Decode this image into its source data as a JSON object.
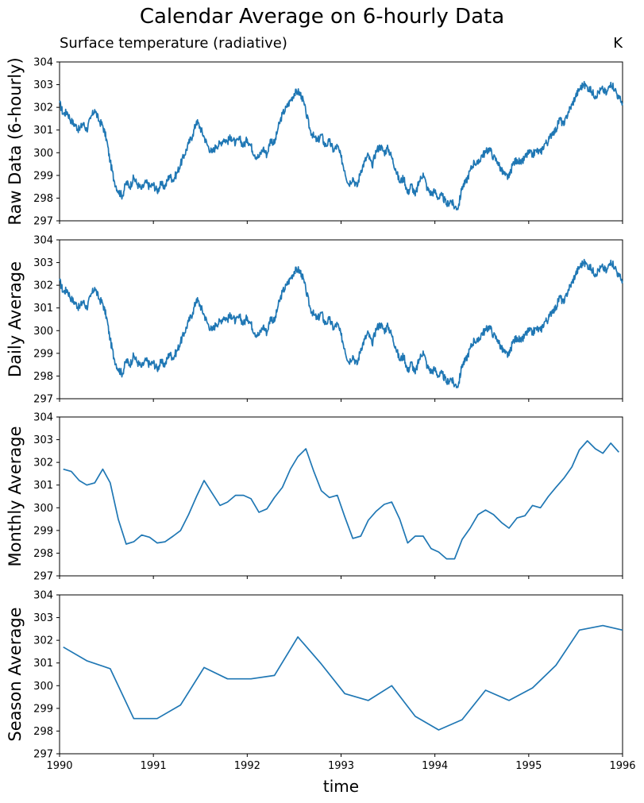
{
  "figure": {
    "title": "Calendar Average on 6-hourly Data",
    "subtitle": "Surface temperature (radiative)",
    "units": "K",
    "xlabel": "time"
  },
  "colors": {
    "line": "#1f77b4",
    "axis": "#000000"
  },
  "chart_data": [
    {
      "type": "line",
      "title": "",
      "ylabel": "Raw Data (6-hourly)",
      "xlim": [
        1990,
        1996
      ],
      "ylim": [
        297,
        304
      ],
      "yticks": [
        297,
        298,
        299,
        300,
        301,
        302,
        303,
        304
      ],
      "xticks": [
        1990,
        1991,
        1992,
        1993,
        1994,
        1995,
        1996
      ],
      "x": [
        1990.0,
        1990.04,
        1990.08,
        1990.125,
        1990.17,
        1990.21,
        1990.25,
        1990.29,
        1990.33,
        1990.375,
        1990.42,
        1990.46,
        1990.5,
        1990.54,
        1990.58,
        1990.625,
        1990.67,
        1990.71,
        1990.75,
        1990.79,
        1990.83,
        1990.875,
        1990.92,
        1990.96,
        1991.0,
        1991.04,
        1991.08,
        1991.125,
        1991.17,
        1991.21,
        1991.25,
        1991.29,
        1991.33,
        1991.375,
        1991.42,
        1991.46,
        1991.5,
        1991.54,
        1991.58,
        1991.625,
        1991.67,
        1991.71,
        1991.75,
        1991.79,
        1991.83,
        1991.875,
        1991.92,
        1991.96,
        1992.0,
        1992.04,
        1992.08,
        1992.125,
        1992.17,
        1992.21,
        1992.25,
        1992.29,
        1992.33,
        1992.375,
        1992.42,
        1992.46,
        1992.5,
        1992.54,
        1992.58,
        1992.625,
        1992.67,
        1992.71,
        1992.75,
        1992.79,
        1992.83,
        1992.875,
        1992.92,
        1992.96,
        1993.0,
        1993.04,
        1993.08,
        1993.125,
        1993.17,
        1993.21,
        1993.25,
        1993.29,
        1993.33,
        1993.375,
        1993.42,
        1993.46,
        1993.5,
        1993.54,
        1993.58,
        1993.625,
        1993.67,
        1993.71,
        1993.75,
        1993.79,
        1993.83,
        1993.875,
        1993.92,
        1993.96,
        1994.0,
        1994.04,
        1994.08,
        1994.125,
        1994.17,
        1994.21,
        1994.25,
        1994.29,
        1994.33,
        1994.375,
        1994.42,
        1994.46,
        1994.5,
        1994.54,
        1994.58,
        1994.625,
        1994.67,
        1994.71,
        1994.75,
        1994.79,
        1994.83,
        1994.875,
        1994.92,
        1994.96,
        1995.0,
        1995.04,
        1995.08,
        1995.125,
        1995.17,
        1995.21,
        1995.25,
        1995.29,
        1995.33,
        1995.375,
        1995.42,
        1995.46,
        1995.5,
        1995.54,
        1995.58,
        1995.625,
        1995.67,
        1995.71,
        1995.75,
        1995.79,
        1995.83,
        1995.875,
        1995.92,
        1995.96,
        1996.0
      ],
      "values": [
        302.2,
        301.7,
        301.8,
        301.4,
        301.2,
        301.0,
        301.3,
        301.0,
        301.5,
        301.9,
        301.4,
        301.2,
        300.6,
        299.6,
        298.8,
        298.3,
        298.1,
        298.7,
        298.5,
        298.9,
        298.6,
        298.4,
        298.7,
        298.5,
        298.6,
        298.3,
        298.6,
        298.5,
        299.0,
        298.8,
        299.1,
        299.5,
        299.9,
        300.4,
        300.8,
        301.4,
        301.1,
        300.7,
        300.3,
        300.0,
        300.3,
        300.4,
        300.6,
        300.5,
        300.7,
        300.4,
        300.6,
        300.3,
        300.6,
        300.3,
        299.9,
        299.8,
        300.2,
        299.9,
        300.6,
        300.4,
        301.1,
        301.7,
        302.0,
        302.3,
        302.6,
        302.7,
        302.5,
        301.8,
        301.0,
        300.7,
        300.5,
        300.8,
        300.3,
        300.5,
        300.1,
        300.3,
        299.8,
        299.2,
        298.6,
        298.9,
        298.5,
        299.2,
        299.6,
        299.9,
        299.4,
        300.1,
        300.3,
        300.0,
        300.2,
        299.8,
        299.3,
        298.7,
        298.9,
        298.2,
        298.6,
        298.1,
        298.7,
        299.1,
        298.4,
        298.2,
        298.3,
        298.0,
        298.1,
        297.7,
        297.9,
        297.6,
        297.6,
        298.5,
        298.7,
        299.2,
        299.6,
        299.5,
        299.9,
        300.0,
        300.2,
        299.8,
        299.6,
        299.2,
        299.0,
        298.9,
        299.5,
        299.7,
        299.5,
        299.8,
        300.0,
        299.9,
        300.1,
        300.0,
        300.4,
        300.5,
        300.9,
        301.0,
        301.5,
        301.2,
        301.8,
        302.1,
        302.5,
        302.8,
        303.0,
        302.9,
        302.7,
        302.5,
        302.7,
        302.8,
        302.6,
        303.1,
        302.8,
        302.4,
        302.2
      ],
      "style": "wiggly"
    },
    {
      "type": "line",
      "title": "",
      "ylabel": "Daily Average",
      "xlim": [
        1990,
        1996
      ],
      "ylim": [
        297,
        304
      ],
      "yticks": [
        297,
        298,
        299,
        300,
        301,
        302,
        303,
        304
      ],
      "xticks": [
        1990,
        1991,
        1992,
        1993,
        1994,
        1995,
        1996
      ],
      "x": [
        1990.0,
        1990.04,
        1990.08,
        1990.125,
        1990.17,
        1990.21,
        1990.25,
        1990.29,
        1990.33,
        1990.375,
        1990.42,
        1990.46,
        1990.5,
        1990.54,
        1990.58,
        1990.625,
        1990.67,
        1990.71,
        1990.75,
        1990.79,
        1990.83,
        1990.875,
        1990.92,
        1990.96,
        1991.0,
        1991.04,
        1991.08,
        1991.125,
        1991.17,
        1991.21,
        1991.25,
        1991.29,
        1991.33,
        1991.375,
        1991.42,
        1991.46,
        1991.5,
        1991.54,
        1991.58,
        1991.625,
        1991.67,
        1991.71,
        1991.75,
        1991.79,
        1991.83,
        1991.875,
        1991.92,
        1991.96,
        1992.0,
        1992.04,
        1992.08,
        1992.125,
        1992.17,
        1992.21,
        1992.25,
        1992.29,
        1992.33,
        1992.375,
        1992.42,
        1992.46,
        1992.5,
        1992.54,
        1992.58,
        1992.625,
        1992.67,
        1992.71,
        1992.75,
        1992.79,
        1992.83,
        1992.875,
        1992.92,
        1992.96,
        1993.0,
        1993.04,
        1993.08,
        1993.125,
        1993.17,
        1993.21,
        1993.25,
        1993.29,
        1993.33,
        1993.375,
        1993.42,
        1993.46,
        1993.5,
        1993.54,
        1993.58,
        1993.625,
        1993.67,
        1993.71,
        1993.75,
        1993.79,
        1993.83,
        1993.875,
        1993.92,
        1993.96,
        1994.0,
        1994.04,
        1994.08,
        1994.125,
        1994.17,
        1994.21,
        1994.25,
        1994.29,
        1994.33,
        1994.375,
        1994.42,
        1994.46,
        1994.5,
        1994.54,
        1994.58,
        1994.625,
        1994.67,
        1994.71,
        1994.75,
        1994.79,
        1994.83,
        1994.875,
        1994.92,
        1994.96,
        1995.0,
        1995.04,
        1995.08,
        1995.125,
        1995.17,
        1995.21,
        1995.25,
        1995.29,
        1995.33,
        1995.375,
        1995.42,
        1995.46,
        1995.5,
        1995.54,
        1995.58,
        1995.625,
        1995.67,
        1995.71,
        1995.75,
        1995.79,
        1995.83,
        1995.875,
        1995.92,
        1995.96,
        1996.0
      ],
      "values": [
        302.2,
        301.7,
        301.8,
        301.4,
        301.2,
        301.0,
        301.3,
        301.0,
        301.5,
        301.9,
        301.4,
        301.2,
        300.6,
        299.6,
        298.8,
        298.3,
        298.1,
        298.7,
        298.5,
        298.9,
        298.6,
        298.4,
        298.7,
        298.5,
        298.6,
        298.3,
        298.6,
        298.5,
        299.0,
        298.8,
        299.1,
        299.5,
        299.9,
        300.4,
        300.8,
        301.4,
        301.1,
        300.7,
        300.3,
        300.0,
        300.3,
        300.4,
        300.6,
        300.5,
        300.7,
        300.4,
        300.6,
        300.3,
        300.6,
        300.3,
        299.9,
        299.8,
        300.2,
        299.9,
        300.6,
        300.4,
        301.1,
        301.7,
        302.0,
        302.3,
        302.6,
        302.7,
        302.5,
        301.8,
        301.0,
        300.7,
        300.5,
        300.8,
        300.3,
        300.5,
        300.1,
        300.3,
        299.8,
        299.2,
        298.6,
        298.9,
        298.5,
        299.2,
        299.6,
        299.9,
        299.4,
        300.1,
        300.3,
        300.0,
        300.2,
        299.8,
        299.3,
        298.7,
        298.9,
        298.2,
        298.6,
        298.1,
        298.7,
        299.1,
        298.4,
        298.2,
        298.3,
        298.0,
        298.1,
        297.7,
        297.9,
        297.6,
        297.6,
        298.5,
        298.7,
        299.2,
        299.6,
        299.5,
        299.9,
        300.0,
        300.2,
        299.8,
        299.6,
        299.2,
        299.0,
        298.9,
        299.5,
        299.7,
        299.5,
        299.8,
        300.0,
        299.9,
        300.1,
        300.0,
        300.4,
        300.5,
        300.9,
        301.0,
        301.5,
        301.2,
        301.8,
        302.1,
        302.5,
        302.8,
        303.0,
        302.9,
        302.7,
        302.5,
        302.7,
        302.8,
        302.6,
        303.1,
        302.8,
        302.4,
        302.2
      ],
      "style": "wiggly"
    },
    {
      "type": "line",
      "title": "",
      "ylabel": "Monthly Average",
      "xlim": [
        1990,
        1996
      ],
      "ylim": [
        297,
        304
      ],
      "yticks": [
        297,
        298,
        299,
        300,
        301,
        302,
        303,
        304
      ],
      "xticks": [
        1990,
        1991,
        1992,
        1993,
        1994,
        1995,
        1996
      ],
      "x": [
        1990.04,
        1990.125,
        1990.21,
        1990.29,
        1990.375,
        1990.46,
        1990.54,
        1990.625,
        1990.71,
        1990.79,
        1990.875,
        1990.96,
        1991.04,
        1991.125,
        1991.21,
        1991.29,
        1991.375,
        1991.46,
        1991.54,
        1991.625,
        1991.71,
        1991.79,
        1991.875,
        1991.96,
        1992.04,
        1992.125,
        1992.21,
        1992.29,
        1992.375,
        1992.46,
        1992.54,
        1992.625,
        1992.71,
        1992.79,
        1992.875,
        1992.96,
        1993.04,
        1993.125,
        1993.21,
        1993.29,
        1993.375,
        1993.46,
        1993.54,
        1993.625,
        1993.71,
        1993.79,
        1993.875,
        1993.96,
        1994.04,
        1994.125,
        1994.21,
        1994.29,
        1994.375,
        1994.46,
        1994.54,
        1994.625,
        1994.71,
        1994.79,
        1994.875,
        1994.96,
        1995.04,
        1995.125,
        1995.21,
        1995.29,
        1995.375,
        1995.46,
        1995.54,
        1995.625,
        1995.71,
        1995.79,
        1995.875,
        1995.96
      ],
      "values": [
        301.7,
        301.6,
        301.2,
        301.0,
        301.1,
        301.7,
        301.1,
        299.5,
        298.4,
        298.5,
        298.8,
        298.7,
        298.45,
        298.5,
        298.75,
        299.0,
        299.7,
        300.5,
        301.2,
        300.65,
        300.1,
        300.25,
        300.55,
        300.55,
        300.4,
        299.8,
        299.95,
        300.45,
        300.9,
        301.7,
        302.25,
        302.6,
        301.6,
        300.75,
        300.45,
        300.55,
        299.6,
        298.65,
        298.75,
        299.45,
        299.85,
        300.15,
        300.25,
        299.5,
        298.45,
        298.75,
        298.75,
        298.2,
        298.05,
        297.75,
        297.75,
        298.6,
        299.1,
        299.7,
        299.9,
        299.7,
        299.35,
        299.1,
        299.55,
        299.65,
        300.1,
        300.0,
        300.5,
        300.9,
        301.3,
        301.8,
        302.55,
        302.95,
        302.6,
        302.4,
        302.85,
        302.45
      ],
      "style": "straight"
    },
    {
      "type": "line",
      "title": "",
      "ylabel": "Season Average",
      "xlim": [
        1990,
        1996
      ],
      "ylim": [
        297,
        304
      ],
      "yticks": [
        297,
        298,
        299,
        300,
        301,
        302,
        303,
        304
      ],
      "xticks": [
        1990,
        1991,
        1992,
        1993,
        1994,
        1995,
        1996
      ],
      "xticklabels": [
        "1990",
        "1991",
        "1992",
        "1993",
        "1994",
        "1995",
        "1996"
      ],
      "x": [
        1990.04,
        1990.29,
        1990.54,
        1990.79,
        1991.04,
        1991.29,
        1991.54,
        1991.79,
        1992.04,
        1992.29,
        1992.54,
        1992.79,
        1993.04,
        1993.29,
        1993.54,
        1993.79,
        1994.04,
        1994.29,
        1994.54,
        1994.79,
        1995.04,
        1995.29,
        1995.54,
        1995.79,
        1996.0
      ],
      "values": [
        301.7,
        301.1,
        300.75,
        298.55,
        298.55,
        299.15,
        300.8,
        300.3,
        300.3,
        300.45,
        302.15,
        300.95,
        299.65,
        299.35,
        300.0,
        298.65,
        298.05,
        298.5,
        299.8,
        299.35,
        299.9,
        300.9,
        302.45,
        302.65,
        302.45
      ],
      "style": "straight"
    }
  ]
}
